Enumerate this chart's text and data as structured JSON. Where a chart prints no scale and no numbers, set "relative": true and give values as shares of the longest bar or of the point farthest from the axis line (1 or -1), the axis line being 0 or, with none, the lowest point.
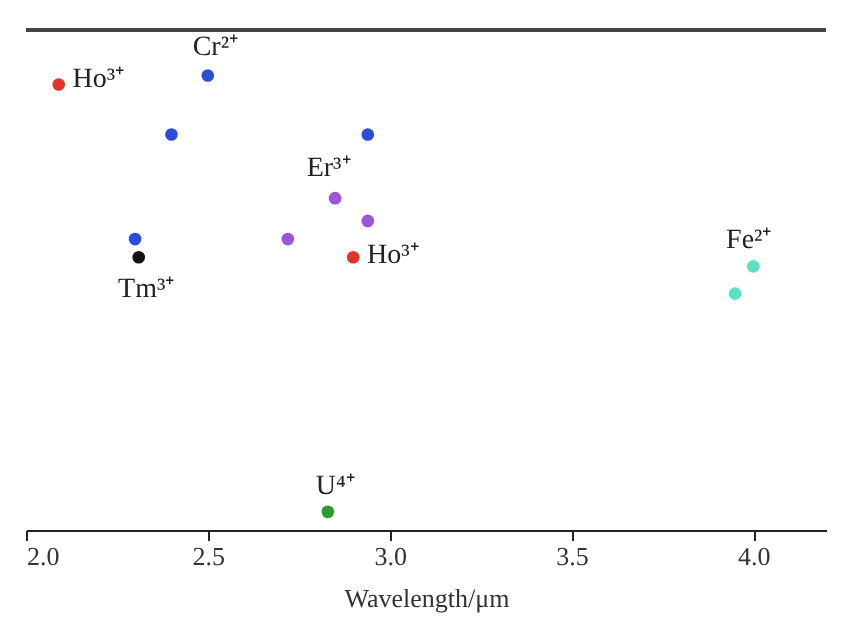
{
  "chart_data": {
    "type": "scatter",
    "relative": true,
    "xlabel": "Wavelength/μm",
    "xlim": [
      2.0,
      4.2
    ],
    "xticks": [
      {
        "value": 2.0,
        "label": "2.0"
      },
      2.5,
      {
        "value": 3.0,
        "label": "3.0"
      },
      3.5,
      {
        "value": 4.0,
        "label": "4.0"
      }
    ],
    "marker": "circle",
    "series": [
      {
        "color": "#e0352b",
        "x": [
          2.09,
          2.9
        ],
        "values": [
          0.98,
          0.6
        ]
      },
      {
        "color": "#2a4fd6",
        "x": [
          2.5,
          2.4,
          2.94,
          2.3
        ],
        "values": [
          1.0,
          0.87,
          0.87,
          0.64
        ]
      },
      {
        "color": "#9b55d6",
        "x": [
          2.85,
          2.94,
          2.72
        ],
        "values": [
          0.73,
          0.68,
          0.64
        ]
      },
      {
        "color": "#111111",
        "x": [
          2.31
        ],
        "values": [
          0.6
        ]
      },
      {
        "color": "#5ee0c0",
        "x": [
          4.0,
          3.95
        ],
        "values": [
          0.58,
          0.52
        ]
      },
      {
        "color": "#2f9a2f",
        "x": [
          2.83
        ],
        "values": [
          0.04
        ]
      }
    ],
    "annotations": [
      {
        "text": "Ho³⁺",
        "x": 2.09,
        "y": 0.98
      },
      {
        "text": "Cr²⁺",
        "x": 2.5,
        "y": 1.0
      },
      {
        "text": "Er³⁺",
        "x": 2.85,
        "y": 0.73
      },
      {
        "text": "Ho³⁺",
        "x": 2.9,
        "y": 0.6
      },
      {
        "text": "Tm³⁺",
        "x": 2.31,
        "y": 0.6
      },
      {
        "text": "Fe²⁺",
        "x": 4.0,
        "y": 0.58
      },
      {
        "text": "U⁴⁺",
        "x": 2.83,
        "y": 0.04
      }
    ]
  }
}
